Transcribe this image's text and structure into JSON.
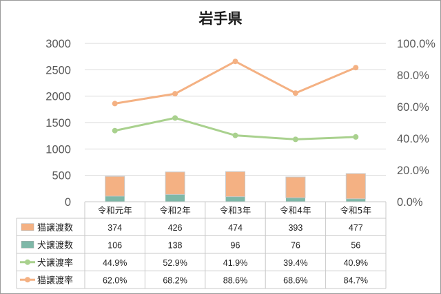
{
  "chart_data": {
    "type": "bar+line",
    "title": "岩手県",
    "categories": [
      "令和元年",
      "令和2年",
      "令和3年",
      "令和4年",
      "令和5年"
    ],
    "y_left": {
      "min": 0,
      "max": 3000,
      "step": 500,
      "ticks": [
        "0",
        "500",
        "1000",
        "1500",
        "2000",
        "2500",
        "3000"
      ]
    },
    "y_right": {
      "min": 0,
      "max": 100,
      "step": 20,
      "ticks": [
        "0.0%",
        "20.0%",
        "40.0%",
        "60.0%",
        "80.0%",
        "100.0%"
      ]
    },
    "bars": [
      {
        "name": "猫譲渡数",
        "values": [
          374,
          426,
          474,
          393,
          477
        ],
        "labels": [
          "374",
          "426",
          "474",
          "393",
          "477"
        ],
        "color": "#f4b183"
      },
      {
        "name": "犬譲渡数",
        "values": [
          106,
          138,
          96,
          76,
          56
        ],
        "labels": [
          "106",
          "138",
          "96",
          "76",
          "56"
        ],
        "color": "#7fb8a8"
      }
    ],
    "lines": [
      {
        "name": "犬譲渡率",
        "values": [
          44.9,
          52.9,
          41.9,
          39.4,
          40.9
        ],
        "labels": [
          "44.9%",
          "52.9%",
          "41.9%",
          "39.4%",
          "40.9%"
        ],
        "color": "#a9d18e"
      },
      {
        "name": "猫譲渡率",
        "values": [
          62.0,
          68.2,
          88.6,
          68.6,
          84.7
        ],
        "labels": [
          "62.0%",
          "68.2%",
          "88.6%",
          "68.6%",
          "84.7%"
        ],
        "color": "#f4b183"
      }
    ],
    "grid": true,
    "legend": "data-table"
  }
}
